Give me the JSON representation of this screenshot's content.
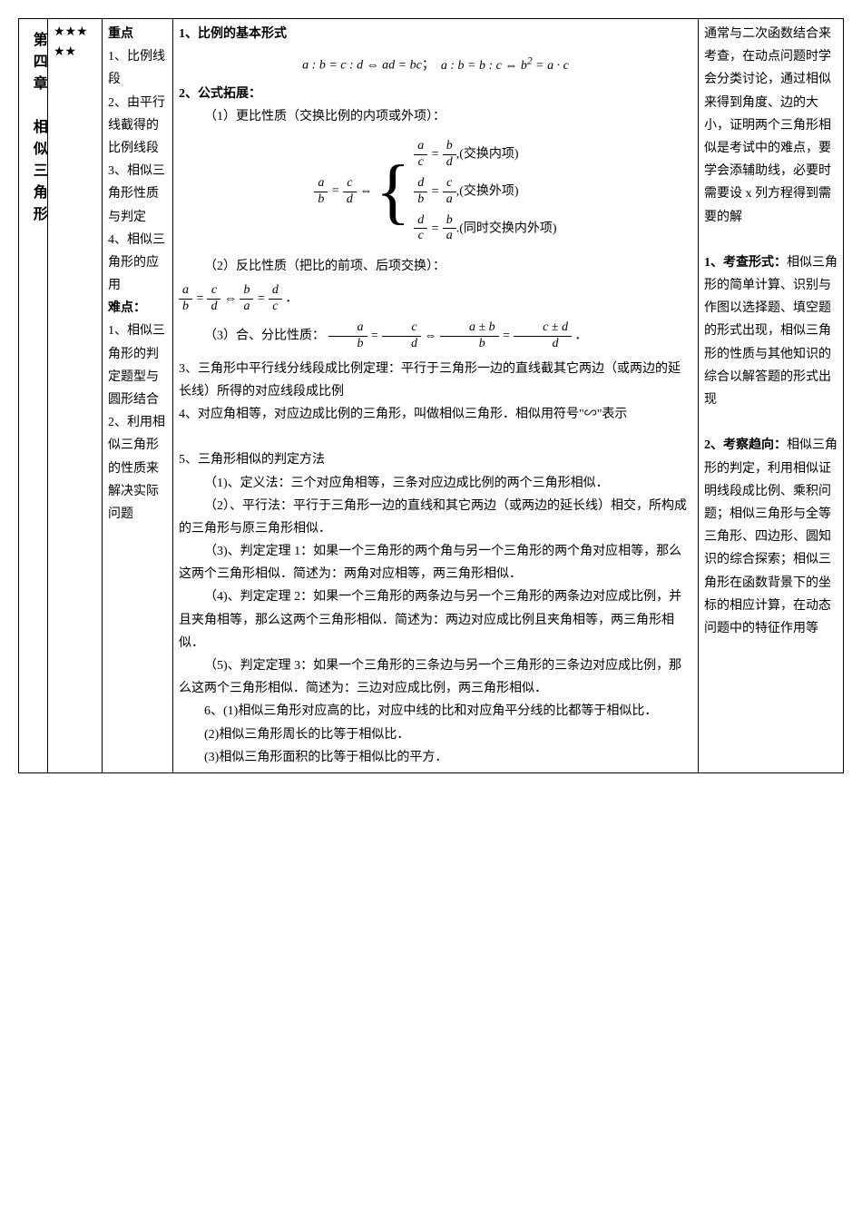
{
  "chapter": "第四章　相似三角形",
  "stars_line1": "★★★",
  "stars_line2": "★★",
  "topics": {
    "heading_key": "重点",
    "t1": "1、比例线段",
    "t2": "2、由平行线截得的比例线段",
    "t3": "3、相似三角形性质与判定",
    "t4": "4、相似三角形的应用",
    "hard_heading": "难点：",
    "h1": "1、相似三角形的判定题型与圆形结合",
    "h2": "2、利用相似三角形的性质来解决实际问题"
  },
  "content": {
    "p1_title": "1、比例的基本形式",
    "p1_formula_note": "a : b = c : d ⇔ ad = bc；　a : b = b : c ⇔ b² = a · c",
    "p2_title": "2、公式拓展：",
    "p2_1": "（1）更比性质（交换比例的内项或外项）：",
    "swap_inner": ",(交换内项)",
    "swap_outer": ",(交换外项)",
    "swap_both": ".(同时交换内外项)",
    "p2_2": "（2）反比性质（把比的前项、后项交换）：",
    "p2_3_prefix": "（3）合、分比性质：",
    "p3": "3、三角形中平行线分线段成比例定理：平行于三角形一边的直线截其它两边（或两边的延长线）所得的对应线段成比例",
    "p4": "4、对应角相等，对应边成比例的三角形，叫做相似三角形．相似用符号\"∽\"表示",
    "p5_title": "5、三角形相似的判定方法",
    "p5_1": "（1)、定义法：三个对应角相等，三条对应边成比例的两个三角形相似．",
    "p5_2": "（2）、平行法：平行于三角形一边的直线和其它两边（或两边的延长线）相交，所构成的三角形与原三角形相似．",
    "p5_3": "（3)、判定定理 1：如果一个三角形的两个角与另一个三角形的两个角对应相等，那么这两个三角形相似．简述为：两角对应相等，两三角形相似．",
    "p5_4": "（4)、判定定理 2：如果一个三角形的两条边与另一个三角形的两条边对应成比例，并且夹角相等，那么这两个三角形相似．简述为：两边对应成比例且夹角相等，两三角形相似．",
    "p5_5": "（5)、判定定理 3：如果一个三角形的三条边与另一个三角形的三条边对应成比例，那么这两个三角形相似．简述为：三边对应成比例，两三角形相似．",
    "p6_1": "6、(1)相似三角形对应高的比，对应中线的比和对应角平分线的比都等于相似比．",
    "p6_2": "(2)相似三角形周长的比等于相似比．",
    "p6_3": "(3)相似三角形面积的比等于相似比的平方．"
  },
  "notes": {
    "n1": "通常与二次函数结合来考查，在动点问题时学会分类讨论，通过相似来得到角度、边的大小，证明两个三角形相似是考试中的难点，要学会添辅助线，必要时需要设 x 列方程得到需要的解",
    "n2_title": "1、考查形式：",
    "n2": "相似三角形的简单计算、识别与作图以选择题、填空题的形式出现，相似三角形的性质与其他知识的综合以解答题的形式出现",
    "n3_title": "2、考察趋向：",
    "n3": "相似三角形的判定，利用相似证明线段成比例、乘积问题；相似三角形与全等三角形、四边形、圆知识的综合探索；相似三角形在函数背景下的坐标的相应计算，在动态问题中的特征作用等"
  }
}
